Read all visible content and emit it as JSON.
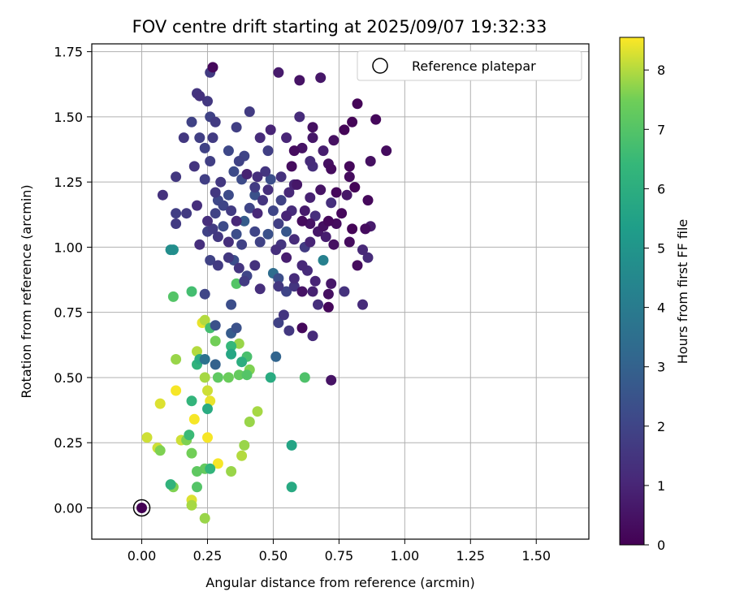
{
  "chart_data": {
    "type": "scatter",
    "title": "FOV centre drift starting at 2025/09/07 19:32:33",
    "xlabel": "Angular distance from reference (arcmin)",
    "ylabel": "Rotation from reference (arcmin)",
    "xlim": [
      -0.19,
      1.7
    ],
    "ylim": [
      -0.12,
      1.78
    ],
    "xticks": [
      0.0,
      0.25,
      0.5,
      0.75,
      1.0,
      1.25,
      1.5
    ],
    "xtick_labels": [
      "0.00",
      "0.25",
      "0.50",
      "0.75",
      "1.00",
      "1.25",
      "1.50"
    ],
    "yticks": [
      0.0,
      0.25,
      0.5,
      0.75,
      1.0,
      1.25,
      1.5,
      1.75
    ],
    "ytick_labels": [
      "0.00",
      "0.25",
      "0.50",
      "0.75",
      "1.00",
      "1.25",
      "1.50",
      "1.75"
    ],
    "grid": true,
    "legend": {
      "label": "Reference platepar",
      "placement": "top-right",
      "marker": "open-circle"
    },
    "reference_point": {
      "x": 0.0,
      "y": 0.0
    },
    "colorbar": {
      "label": "Hours from first FF file",
      "colormap": "viridis",
      "range": [
        0,
        8.55
      ],
      "ticks": [
        0,
        1,
        2,
        3,
        4,
        5,
        6,
        7,
        8
      ],
      "tick_labels": [
        "0",
        "1",
        "2",
        "3",
        "4",
        "5",
        "6",
        "7",
        "8"
      ]
    },
    "points": [
      [
        0.0,
        0.0,
        0.0
      ],
      [
        0.27,
        1.69,
        0.2
      ],
      [
        0.26,
        1.67,
        1.7
      ],
      [
        0.52,
        1.67,
        0.7
      ],
      [
        0.6,
        1.64,
        0.5
      ],
      [
        0.68,
        1.65,
        0.6
      ],
      [
        0.21,
        1.59,
        1.5
      ],
      [
        0.22,
        1.58,
        1.4
      ],
      [
        0.25,
        1.56,
        1.6
      ],
      [
        0.41,
        1.52,
        1.7
      ],
      [
        0.82,
        1.55,
        0.1
      ],
      [
        0.19,
        1.48,
        1.9
      ],
      [
        0.26,
        1.5,
        1.9
      ],
      [
        0.36,
        1.46,
        1.8
      ],
      [
        0.6,
        1.5,
        1.2
      ],
      [
        0.8,
        1.48,
        0.1
      ],
      [
        0.89,
        1.49,
        0.2
      ],
      [
        0.16,
        1.42,
        1.6
      ],
      [
        0.22,
        1.42,
        1.8
      ],
      [
        0.28,
        1.48,
        1.7
      ],
      [
        0.27,
        1.42,
        1.7
      ],
      [
        0.45,
        1.42,
        1.2
      ],
      [
        0.49,
        1.45,
        1.0
      ],
      [
        0.55,
        1.42,
        1.0
      ],
      [
        0.65,
        1.46,
        0.4
      ],
      [
        0.73,
        1.41,
        0.4
      ],
      [
        0.77,
        1.45,
        0.1
      ],
      [
        0.65,
        1.42,
        0.6
      ],
      [
        0.24,
        1.38,
        1.9
      ],
      [
        0.33,
        1.37,
        2.1
      ],
      [
        0.37,
        1.33,
        1.9
      ],
      [
        0.39,
        1.35,
        2.0
      ],
      [
        0.48,
        1.37,
        1.8
      ],
      [
        0.58,
        1.37,
        0.3
      ],
      [
        0.61,
        1.38,
        0.5
      ],
      [
        0.64,
        1.33,
        1.2
      ],
      [
        0.69,
        1.37,
        0.8
      ],
      [
        0.93,
        1.37,
        0.3
      ],
      [
        0.87,
        1.33,
        0.4
      ],
      [
        0.2,
        1.31,
        1.5
      ],
      [
        0.26,
        1.33,
        1.8
      ],
      [
        0.3,
        1.25,
        1.6
      ],
      [
        0.35,
        1.29,
        2.2
      ],
      [
        0.4,
        1.28,
        0.9
      ],
      [
        0.44,
        1.27,
        1.3
      ],
      [
        0.47,
        1.29,
        1.5
      ],
      [
        0.53,
        1.27,
        1.4
      ],
      [
        0.57,
        1.31,
        0.3
      ],
      [
        0.58,
        1.24,
        1.0
      ],
      [
        0.65,
        1.31,
        1.3
      ],
      [
        0.71,
        1.32,
        0.4
      ],
      [
        0.72,
        1.3,
        0.3
      ],
      [
        0.79,
        1.31,
        0.2
      ],
      [
        0.79,
        1.27,
        0.3
      ],
      [
        0.81,
        1.23,
        0.1
      ],
      [
        0.13,
        1.27,
        1.6
      ],
      [
        0.08,
        1.2,
        1.4
      ],
      [
        0.24,
        1.26,
        1.8
      ],
      [
        0.28,
        1.21,
        1.6
      ],
      [
        0.29,
        1.18,
        2.1
      ],
      [
        0.33,
        1.2,
        2.2
      ],
      [
        0.38,
        1.26,
        2.2
      ],
      [
        0.43,
        1.2,
        2.4
      ],
      [
        0.43,
        1.23,
        1.7
      ],
      [
        0.48,
        1.22,
        1.3
      ],
      [
        0.49,
        1.26,
        2.3
      ],
      [
        0.53,
        1.18,
        1.9
      ],
      [
        0.56,
        1.21,
        1.1
      ],
      [
        0.59,
        1.24,
        0.6
      ],
      [
        0.64,
        1.19,
        0.9
      ],
      [
        0.68,
        1.22,
        0.5
      ],
      [
        0.72,
        1.17,
        1.3
      ],
      [
        0.74,
        1.21,
        0.2
      ],
      [
        0.78,
        1.2,
        0.6
      ],
      [
        0.86,
        1.18,
        0.2
      ],
      [
        0.13,
        1.13,
        1.8
      ],
      [
        0.13,
        1.09,
        1.7
      ],
      [
        0.17,
        1.13,
        1.7
      ],
      [
        0.21,
        1.16,
        1.3
      ],
      [
        0.25,
        1.1,
        1.3
      ],
      [
        0.28,
        1.13,
        1.9
      ],
      [
        0.31,
        1.16,
        2.0
      ],
      [
        0.34,
        1.14,
        1.7
      ],
      [
        0.36,
        1.1,
        1.1
      ],
      [
        0.39,
        1.1,
        2.8
      ],
      [
        0.41,
        1.15,
        2.0
      ],
      [
        0.44,
        1.13,
        1.1
      ],
      [
        0.46,
        1.18,
        1.5
      ],
      [
        0.5,
        1.14,
        2.0
      ],
      [
        0.52,
        1.09,
        1.8
      ],
      [
        0.55,
        1.12,
        1.0
      ],
      [
        0.57,
        1.14,
        1.2
      ],
      [
        0.61,
        1.1,
        0.3
      ],
      [
        0.62,
        1.14,
        0.7
      ],
      [
        0.64,
        1.09,
        0.5
      ],
      [
        0.66,
        1.12,
        1.3
      ],
      [
        0.69,
        1.08,
        0.4
      ],
      [
        0.71,
        1.1,
        0.2
      ],
      [
        0.74,
        1.09,
        0.3
      ],
      [
        0.76,
        1.13,
        0.2
      ],
      [
        0.8,
        1.07,
        0.1
      ],
      [
        0.85,
        1.07,
        0.3
      ],
      [
        0.87,
        1.08,
        0.7
      ],
      [
        0.22,
        1.01,
        1.3
      ],
      [
        0.25,
        1.06,
        1.9
      ],
      [
        0.27,
        1.07,
        1.7
      ],
      [
        0.29,
        1.04,
        1.6
      ],
      [
        0.31,
        1.08,
        2.2
      ],
      [
        0.33,
        1.02,
        1.3
      ],
      [
        0.36,
        1.05,
        2.3
      ],
      [
        0.38,
        1.01,
        1.9
      ],
      [
        0.43,
        1.06,
        2.0
      ],
      [
        0.45,
        1.02,
        1.9
      ],
      [
        0.48,
        1.05,
        2.4
      ],
      [
        0.51,
        0.99,
        1.3
      ],
      [
        0.53,
        1.01,
        1.5
      ],
      [
        0.55,
        1.06,
        2.6
      ],
      [
        0.58,
        1.03,
        1.2
      ],
      [
        0.62,
        1.0,
        1.7
      ],
      [
        0.64,
        1.02,
        1.0
      ],
      [
        0.67,
        1.06,
        0.6
      ],
      [
        0.7,
        1.04,
        0.8
      ],
      [
        0.73,
        1.01,
        0.4
      ],
      [
        0.79,
        1.02,
        0.3
      ],
      [
        0.84,
        0.99,
        1.1
      ],
      [
        0.86,
        0.96,
        1.2
      ],
      [
        0.11,
        0.99,
        4.7
      ],
      [
        0.12,
        0.99,
        4.8
      ],
      [
        0.26,
        0.95,
        1.9
      ],
      [
        0.29,
        0.93,
        1.7
      ],
      [
        0.33,
        0.96,
        1.6
      ],
      [
        0.35,
        0.95,
        2.3
      ],
      [
        0.37,
        0.92,
        1.5
      ],
      [
        0.4,
        0.89,
        2.0
      ],
      [
        0.43,
        0.93,
        1.4
      ],
      [
        0.45,
        0.84,
        1.3
      ],
      [
        0.5,
        0.9,
        3.4
      ],
      [
        0.52,
        0.88,
        2.3
      ],
      [
        0.55,
        0.96,
        0.8
      ],
      [
        0.58,
        0.88,
        1.2
      ],
      [
        0.61,
        0.93,
        1.1
      ],
      [
        0.63,
        0.91,
        1.2
      ],
      [
        0.66,
        0.87,
        1.0
      ],
      [
        0.69,
        0.95,
        4.2
      ],
      [
        0.72,
        0.86,
        0.6
      ],
      [
        0.77,
        0.83,
        1.4
      ],
      [
        0.82,
        0.93,
        0.3
      ],
      [
        0.12,
        0.81,
        7.0
      ],
      [
        0.19,
        0.83,
        6.7
      ],
      [
        0.24,
        0.82,
        2.0
      ],
      [
        0.34,
        0.78,
        2.3
      ],
      [
        0.36,
        0.86,
        7.0
      ],
      [
        0.39,
        0.87,
        1.7
      ],
      [
        0.52,
        0.85,
        1.6
      ],
      [
        0.55,
        0.83,
        2.0
      ],
      [
        0.58,
        0.85,
        1.5
      ],
      [
        0.61,
        0.83,
        0.5
      ],
      [
        0.65,
        0.83,
        0.9
      ],
      [
        0.67,
        0.78,
        1.3
      ],
      [
        0.71,
        0.82,
        0.4
      ],
      [
        0.71,
        0.77,
        0.2
      ],
      [
        0.84,
        0.78,
        1.2
      ],
      [
        0.23,
        0.71,
        8.4
      ],
      [
        0.24,
        0.72,
        8.0
      ],
      [
        0.26,
        0.69,
        6.7
      ],
      [
        0.28,
        0.7,
        2.4
      ],
      [
        0.34,
        0.67,
        2.8
      ],
      [
        0.36,
        0.69,
        2.4
      ],
      [
        0.52,
        0.71,
        1.9
      ],
      [
        0.54,
        0.74,
        1.5
      ],
      [
        0.56,
        0.68,
        1.6
      ],
      [
        0.61,
        0.69,
        0.2
      ],
      [
        0.65,
        0.66,
        1.2
      ],
      [
        0.13,
        0.57,
        7.8
      ],
      [
        0.21,
        0.6,
        8.0
      ],
      [
        0.21,
        0.55,
        6.2
      ],
      [
        0.22,
        0.57,
        5.9
      ],
      [
        0.24,
        0.57,
        3.6
      ],
      [
        0.28,
        0.64,
        7.5
      ],
      [
        0.28,
        0.55,
        3.0
      ],
      [
        0.34,
        0.62,
        6.4
      ],
      [
        0.34,
        0.59,
        5.7
      ],
      [
        0.37,
        0.63,
        7.8
      ],
      [
        0.38,
        0.56,
        6.0
      ],
      [
        0.4,
        0.58,
        6.8
      ],
      [
        0.51,
        0.58,
        3.1
      ],
      [
        0.72,
        0.49,
        0.5
      ],
      [
        0.24,
        0.5,
        7.9
      ],
      [
        0.29,
        0.5,
        7.2
      ],
      [
        0.33,
        0.5,
        7.4
      ],
      [
        0.37,
        0.51,
        7.3
      ],
      [
        0.4,
        0.51,
        7.0
      ],
      [
        0.41,
        0.53,
        7.6
      ],
      [
        0.49,
        0.5,
        5.9
      ],
      [
        0.62,
        0.5,
        6.9
      ],
      [
        0.07,
        0.4,
        8.3
      ],
      [
        0.13,
        0.45,
        8.5
      ],
      [
        0.19,
        0.41,
        6.3
      ],
      [
        0.25,
        0.45,
        8.2
      ],
      [
        0.26,
        0.41,
        8.4
      ],
      [
        0.25,
        0.38,
        5.9
      ],
      [
        0.2,
        0.34,
        8.5
      ],
      [
        0.41,
        0.33,
        7.8
      ],
      [
        0.44,
        0.37,
        7.9
      ],
      [
        0.02,
        0.27,
        8.2
      ],
      [
        0.06,
        0.23,
        8.2
      ],
      [
        0.07,
        0.22,
        7.6
      ],
      [
        0.15,
        0.26,
        8.2
      ],
      [
        0.17,
        0.26,
        7.6
      ],
      [
        0.18,
        0.28,
        6.5
      ],
      [
        0.19,
        0.21,
        7.5
      ],
      [
        0.25,
        0.27,
        8.5
      ],
      [
        0.39,
        0.24,
        7.8
      ],
      [
        0.57,
        0.24,
        5.6
      ],
      [
        0.24,
        0.15,
        7.3
      ],
      [
        0.26,
        0.15,
        6.3
      ],
      [
        0.29,
        0.17,
        8.5
      ],
      [
        0.34,
        0.14,
        7.8
      ],
      [
        0.38,
        0.2,
        8.0
      ],
      [
        0.21,
        0.14,
        7.2
      ],
      [
        0.11,
        0.09,
        6.2
      ],
      [
        0.12,
        0.08,
        7.6
      ],
      [
        0.21,
        0.08,
        7.0
      ],
      [
        0.57,
        0.08,
        5.8
      ],
      [
        0.19,
        0.03,
        8.3
      ],
      [
        0.19,
        0.01,
        7.9
      ],
      [
        0.24,
        -0.04,
        7.8
      ]
    ]
  }
}
